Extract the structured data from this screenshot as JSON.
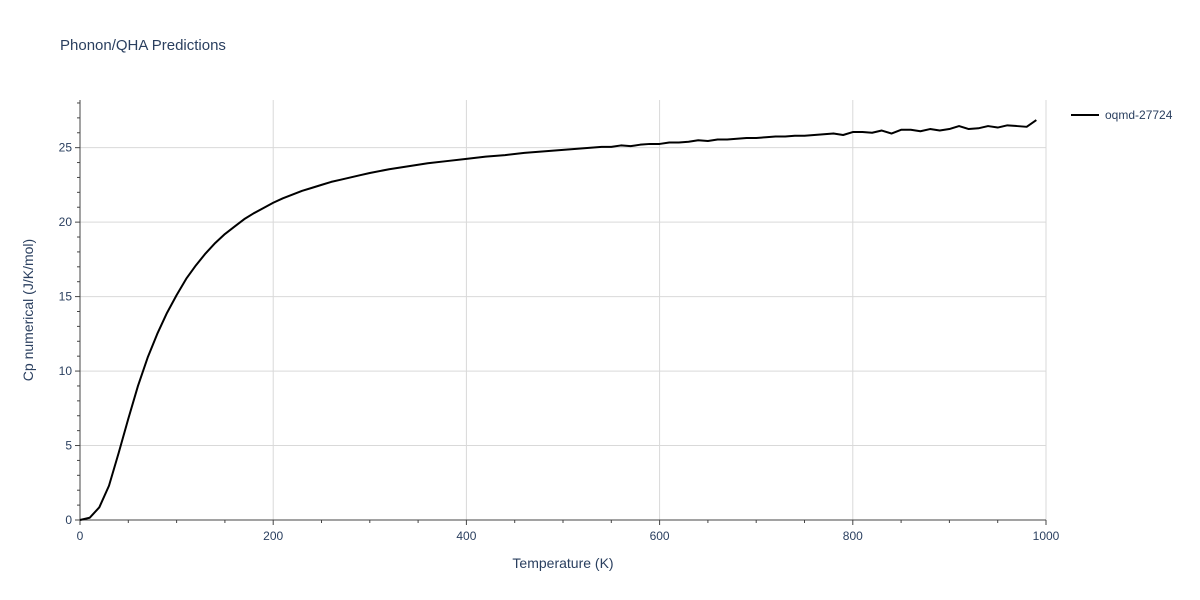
{
  "chart_data": {
    "type": "line",
    "title": "Phonon/QHA Predictions",
    "xlabel": "Temperature (K)",
    "ylabel": "Cp numerical (J/K/mol)",
    "xlim": [
      0,
      1000
    ],
    "ylim": [
      0,
      28.2
    ],
    "x_ticks": [
      0,
      200,
      400,
      600,
      800,
      1000
    ],
    "y_ticks": [
      0,
      5,
      10,
      15,
      20,
      25
    ],
    "x_tick_labels": [
      "0",
      "200",
      "400",
      "600",
      "800",
      "1000"
    ],
    "y_tick_labels": [
      "0",
      "5",
      "10",
      "15",
      "20",
      "25"
    ],
    "grid": true,
    "legend_position": "top-right",
    "series": [
      {
        "name": "oqmd-27724",
        "color": "#000000",
        "x": [
          0,
          10,
          20,
          30,
          40,
          50,
          60,
          70,
          80,
          90,
          100,
          110,
          120,
          130,
          140,
          150,
          160,
          170,
          180,
          190,
          200,
          210,
          220,
          230,
          240,
          250,
          260,
          270,
          280,
          290,
          300,
          320,
          340,
          360,
          380,
          400,
          420,
          440,
          460,
          480,
          500,
          520,
          540,
          550,
          560,
          570,
          580,
          590,
          600,
          610,
          620,
          630,
          640,
          650,
          660,
          670,
          680,
          690,
          700,
          710,
          720,
          730,
          740,
          750,
          760,
          770,
          780,
          790,
          800,
          810,
          820,
          830,
          840,
          850,
          860,
          870,
          880,
          890,
          900,
          910,
          920,
          930,
          940,
          950,
          960,
          970,
          980,
          990
        ],
        "y": [
          0,
          0.15,
          0.85,
          2.3,
          4.5,
          6.8,
          9.0,
          10.9,
          12.5,
          13.9,
          15.1,
          16.2,
          17.1,
          17.9,
          18.6,
          19.2,
          19.7,
          20.2,
          20.6,
          20.95,
          21.3,
          21.6,
          21.85,
          22.1,
          22.3,
          22.5,
          22.7,
          22.85,
          23.0,
          23.15,
          23.3,
          23.55,
          23.75,
          23.95,
          24.1,
          24.25,
          24.4,
          24.5,
          24.65,
          24.75,
          24.85,
          24.95,
          25.05,
          25.05,
          25.15,
          25.1,
          25.2,
          25.25,
          25.25,
          25.35,
          25.35,
          25.4,
          25.5,
          25.45,
          25.55,
          25.55,
          25.6,
          25.65,
          25.65,
          25.7,
          25.75,
          25.75,
          25.8,
          25.8,
          25.85,
          25.9,
          25.95,
          25.85,
          26.05,
          26.05,
          26.0,
          26.15,
          25.95,
          26.2,
          26.2,
          26.1,
          26.25,
          26.15,
          26.25,
          26.45,
          26.25,
          26.3,
          26.45,
          26.35,
          26.5,
          26.45,
          26.4,
          26.85
        ]
      }
    ]
  }
}
